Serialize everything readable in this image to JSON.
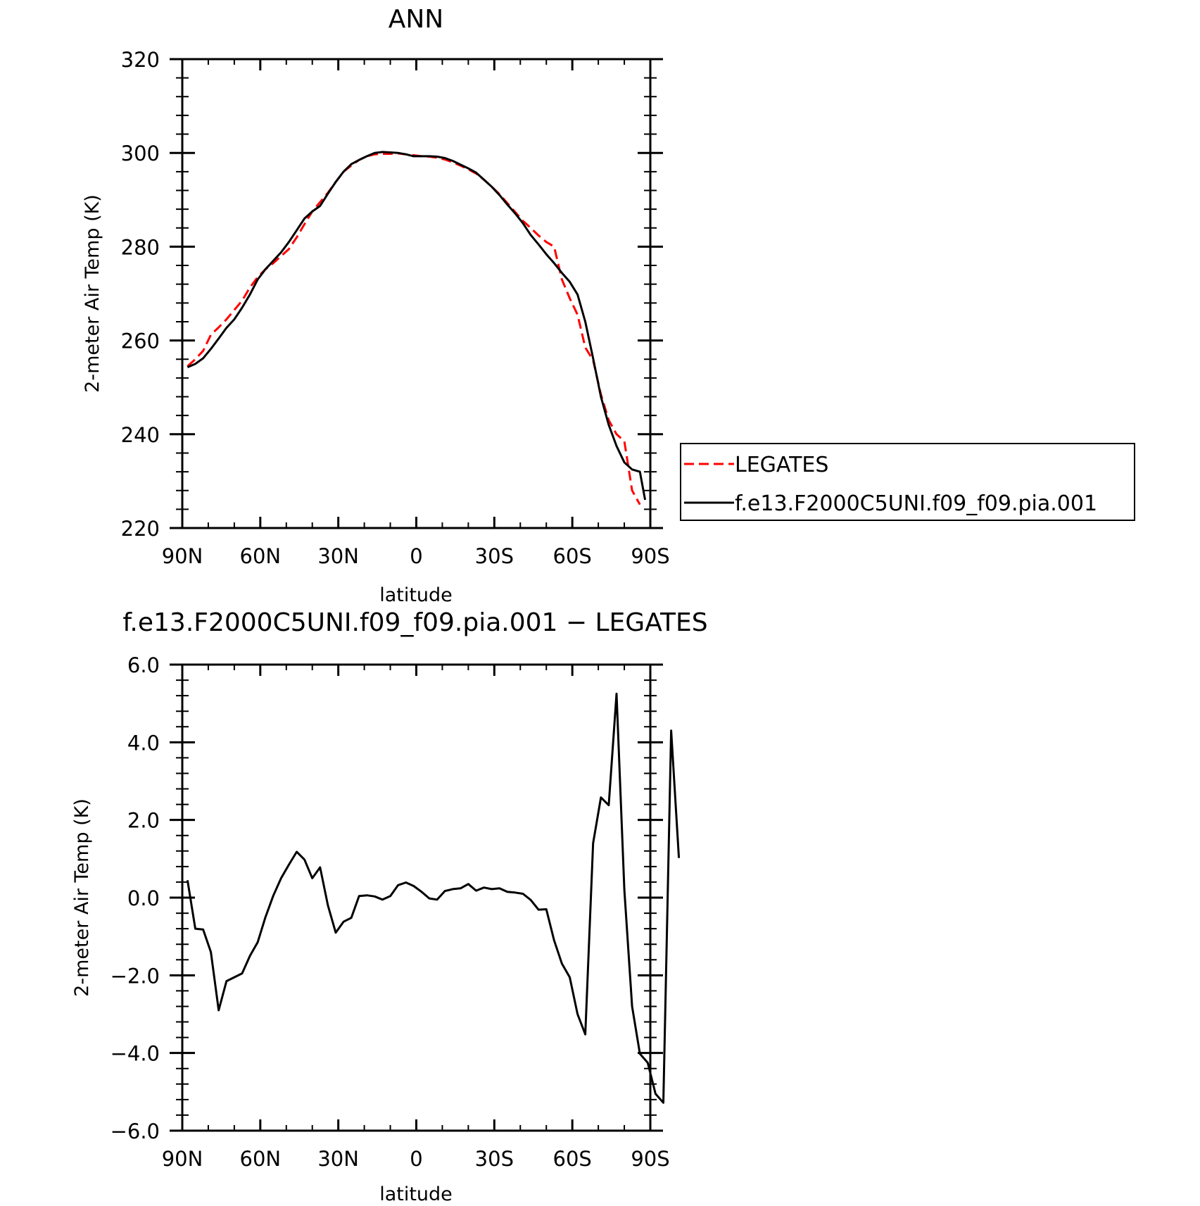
{
  "colors": {
    "background": "#ffffff",
    "axes": "#000000",
    "series_observed": "#ff0000",
    "series_model": "#000000"
  },
  "chart_data": [
    {
      "type": "line",
      "title": "ANN",
      "xlabel": "latitude",
      "ylabel": "2-meter Air Temp (K)",
      "xlim": [
        90,
        -90
      ],
      "ylim": [
        220,
        320
      ],
      "x_ticks": [
        {
          "value": 90,
          "label": "90N"
        },
        {
          "value": 60,
          "label": "60N"
        },
        {
          "value": 30,
          "label": "30N"
        },
        {
          "value": 0,
          "label": "0"
        },
        {
          "value": -30,
          "label": "30S"
        },
        {
          "value": -60,
          "label": "60S"
        },
        {
          "value": -90,
          "label": "90S"
        }
      ],
      "y_ticks": [
        {
          "value": 220,
          "label": "220"
        },
        {
          "value": 240,
          "label": "240"
        },
        {
          "value": 260,
          "label": "260"
        },
        {
          "value": 280,
          "label": "280"
        },
        {
          "value": 300,
          "label": "300"
        },
        {
          "value": 320,
          "label": "320"
        }
      ],
      "legend": {
        "placement": "right",
        "entries": [
          "LEGATES",
          "f.e13.F2000C5UNI.f09_f09.pia.001"
        ]
      },
      "series": [
        {
          "name": "LEGATES",
          "style": "dashed",
          "color": "#ff0000",
          "points": [
            [
              88,
              254.5
            ],
            [
              85,
              256.0
            ],
            [
              82,
              257.8
            ],
            [
              79,
              261.2
            ],
            [
              76,
              262.8
            ],
            [
              73,
              264.5
            ],
            [
              70,
              266.5
            ],
            [
              67,
              268.5
            ],
            [
              64,
              271.3
            ],
            [
              61,
              273.5
            ],
            [
              58,
              275.2
            ],
            [
              55,
              276.5
            ],
            [
              52,
              278.0
            ],
            [
              49,
              279.5
            ],
            [
              46,
              282.0
            ],
            [
              43,
              284.8
            ],
            [
              40,
              287.5
            ],
            [
              37,
              289.5
            ],
            [
              34,
              291.5
            ],
            [
              31,
              293.8
            ],
            [
              28,
              296.0
            ],
            [
              25,
              297.3
            ],
            [
              22,
              298.5
            ],
            [
              19,
              299.3
            ],
            [
              16,
              299.7
            ],
            [
              13,
              299.8
            ],
            [
              10,
              299.8
            ],
            [
              7,
              299.9
            ],
            [
              4,
              299.7
            ],
            [
              1,
              299.5
            ],
            [
              -2,
              299.3
            ],
            [
              -5,
              299.2
            ],
            [
              -8,
              299.0
            ],
            [
              -11,
              298.6
            ],
            [
              -14,
              298.0
            ],
            [
              -17,
              297.3
            ],
            [
              -20,
              296.5
            ],
            [
              -23,
              295.6
            ],
            [
              -26,
              294.3
            ],
            [
              -29,
              292.8
            ],
            [
              -32,
              291.2
            ],
            [
              -35,
              289.3
            ],
            [
              -38,
              287.4
            ],
            [
              -41,
              285.5
            ],
            [
              -44,
              284.0
            ],
            [
              -47,
              282.4
            ],
            [
              -50,
              281.0
            ],
            [
              -53,
              280.0
            ],
            [
              -56,
              273.0
            ],
            [
              -59,
              269.0
            ],
            [
              -62,
              265.5
            ],
            [
              -65,
              258.5
            ],
            [
              -68,
              255.8
            ],
            [
              -71,
              248.5
            ],
            [
              -74,
              243.0
            ],
            [
              -77,
              240.0
            ],
            [
              -80,
              238.5
            ],
            [
              -83,
              228.0
            ],
            [
              -86,
              225.0
            ]
          ]
        },
        {
          "name": "f.e13.F2000C5UNI.f09_f09.pia.001",
          "style": "solid",
          "color": "#000000",
          "points": [
            [
              88,
              254.3
            ],
            [
              85,
              255.0
            ],
            [
              82,
              256.2
            ],
            [
              79,
              258.2
            ],
            [
              76,
              260.4
            ],
            [
              73,
              262.7
            ],
            [
              70,
              264.5
            ],
            [
              67,
              267.0
            ],
            [
              64,
              269.8
            ],
            [
              61,
              273.0
            ],
            [
              58,
              275.2
            ],
            [
              55,
              277.0
            ],
            [
              52,
              278.8
            ],
            [
              49,
              281.0
            ],
            [
              46,
              283.5
            ],
            [
              43,
              286.0
            ],
            [
              40,
              287.5
            ],
            [
              37,
              288.7
            ],
            [
              34,
              291.3
            ],
            [
              31,
              293.8
            ],
            [
              28,
              296.0
            ],
            [
              25,
              297.6
            ],
            [
              22,
              298.5
            ],
            [
              19,
              299.3
            ],
            [
              16,
              300.0
            ],
            [
              13,
              300.2
            ],
            [
              10,
              300.1
            ],
            [
              7,
              300.0
            ],
            [
              4,
              299.7
            ],
            [
              1,
              299.3
            ],
            [
              -2,
              299.3
            ],
            [
              -5,
              299.3
            ],
            [
              -8,
              299.2
            ],
            [
              -11,
              298.9
            ],
            [
              -14,
              298.3
            ],
            [
              -17,
              297.5
            ],
            [
              -20,
              296.7
            ],
            [
              -23,
              295.8
            ],
            [
              -26,
              294.3
            ],
            [
              -29,
              292.8
            ],
            [
              -32,
              291.0
            ],
            [
              -35,
              289.0
            ],
            [
              -38,
              287.1
            ],
            [
              -41,
              285.0
            ],
            [
              -44,
              282.5
            ],
            [
              -47,
              280.5
            ],
            [
              -50,
              278.4
            ],
            [
              -53,
              276.5
            ],
            [
              -56,
              274.4
            ],
            [
              -59,
              272.5
            ],
            [
              -62,
              269.8
            ],
            [
              -65,
              264.0
            ],
            [
              -68,
              256.2
            ],
            [
              -71,
              248.0
            ],
            [
              -74,
              242.0
            ],
            [
              -77,
              237.5
            ],
            [
              -80,
              234.0
            ],
            [
              -83,
              232.5
            ],
            [
              -86,
              232.0
            ],
            [
              -88,
              226.0
            ]
          ]
        }
      ]
    },
    {
      "type": "line",
      "title": "f.e13.F2000C5UNI.f09_f09.pia.001 − LEGATES",
      "xlabel": "latitude",
      "ylabel": "2-meter Air Temp (K)",
      "xlim": [
        90,
        -90
      ],
      "ylim": [
        -6,
        6
      ],
      "x_ticks": [
        {
          "value": 90,
          "label": "90N"
        },
        {
          "value": 60,
          "label": "60N"
        },
        {
          "value": 30,
          "label": "30N"
        },
        {
          "value": 0,
          "label": "0"
        },
        {
          "value": -30,
          "label": "30S"
        },
        {
          "value": -60,
          "label": "60S"
        },
        {
          "value": -90,
          "label": "90S"
        }
      ],
      "y_ticks": [
        {
          "value": -6,
          "label": "−6.0"
        },
        {
          "value": -4,
          "label": "−4.0"
        },
        {
          "value": -2,
          "label": "−2.0"
        },
        {
          "value": 0,
          "label": "0.0"
        },
        {
          "value": 2,
          "label": "2.0"
        },
        {
          "value": 4,
          "label": "4.0"
        },
        {
          "value": 6,
          "label": "6.0"
        }
      ],
      "series": [
        {
          "style": "solid",
          "color": "#000000",
          "points": [
            [
              88,
              0.45
            ],
            [
              85,
              -0.8
            ],
            [
              82,
              -0.82
            ],
            [
              79,
              -1.4
            ],
            [
              76,
              -2.9
            ],
            [
              73,
              -2.15
            ],
            [
              70,
              -2.05
            ],
            [
              67,
              -1.95
            ],
            [
              64,
              -1.5
            ],
            [
              61,
              -1.15
            ],
            [
              58,
              -0.5
            ],
            [
              55,
              0.05
            ],
            [
              52,
              0.5
            ],
            [
              49,
              0.85
            ],
            [
              46,
              1.18
            ],
            [
              43,
              0.98
            ],
            [
              40,
              0.5
            ],
            [
              37,
              0.78
            ],
            [
              34,
              -0.2
            ],
            [
              31,
              -0.9
            ],
            [
              28,
              -0.62
            ],
            [
              25,
              -0.52
            ],
            [
              22,
              0.04
            ],
            [
              19,
              0.06
            ],
            [
              16,
              0.03
            ],
            [
              13,
              -0.05
            ],
            [
              10,
              0.04
            ],
            [
              7,
              0.32
            ],
            [
              4,
              0.39
            ],
            [
              1,
              0.3
            ],
            [
              -2,
              0.15
            ],
            [
              -5,
              -0.02
            ],
            [
              -8,
              -0.05
            ],
            [
              -11,
              0.17
            ],
            [
              -14,
              0.22
            ],
            [
              -17,
              0.24
            ],
            [
              -20,
              0.35
            ],
            [
              -23,
              0.18
            ],
            [
              -26,
              0.26
            ],
            [
              -29,
              0.22
            ],
            [
              -32,
              0.24
            ],
            [
              -35,
              0.15
            ],
            [
              -38,
              0.13
            ],
            [
              -41,
              0.1
            ],
            [
              -44,
              -0.06
            ],
            [
              -47,
              -0.31
            ],
            [
              -50,
              -0.3
            ],
            [
              -53,
              -1.1
            ],
            [
              -56,
              -1.7
            ],
            [
              -59,
              -2.05
            ],
            [
              -62,
              -3.0
            ],
            [
              -65,
              -3.52
            ],
            [
              -68,
              1.4
            ],
            [
              -71,
              2.58
            ],
            [
              -74,
              2.38
            ],
            [
              -77,
              5.25
            ],
            [
              -80,
              0.2
            ],
            [
              -83,
              -2.8
            ],
            [
              -86,
              -4.02
            ],
            [
              -89,
              -4.25
            ],
            [
              -92,
              -5.05
            ],
            [
              -95,
              -5.28
            ],
            [
              -98,
              4.3
            ],
            [
              -101,
              1.02
            ]
          ]
        }
      ]
    }
  ]
}
